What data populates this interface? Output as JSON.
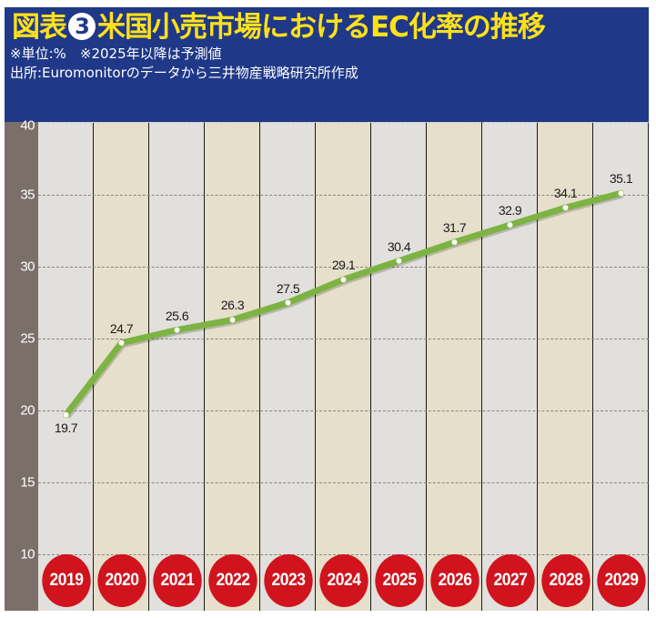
{
  "header": {
    "title_prefix": "図表",
    "figure_number": "3",
    "title_main": "米国小売市場におけるEC化率の推移",
    "unit_note": "※単位:%　※2025年以降は予測値",
    "source_note": "出所:Euromonitorのデータから三井物産戦略研究所作成"
  },
  "colors": {
    "header_bg": "#1f3888",
    "title": "#ffe11a",
    "line": "#7cb342",
    "year_badge": "#d0131d",
    "axis_bg": "#7a6f69",
    "column_a": "#e2e0dd",
    "column_b": "#e6dfcb"
  },
  "chart_data": {
    "type": "line",
    "title": "米国小売市場におけるEC化率の推移",
    "subtitle": "※単位:%　※2025年以降は予測値",
    "source": "出所:Euromonitorのデータから三井物産戦略研究所作成",
    "xlabel": "",
    "ylabel": "%",
    "categories": [
      "2019",
      "2020",
      "2021",
      "2022",
      "2023",
      "2024",
      "2025",
      "2026",
      "2027",
      "2028",
      "2029"
    ],
    "values": [
      19.7,
      24.7,
      25.6,
      26.3,
      27.5,
      29.1,
      30.4,
      31.7,
      32.9,
      34.1,
      35.1
    ],
    "labels": [
      "19.7",
      "24.7",
      "25.6",
      "26.3",
      "27.5",
      "29.1",
      "30.4",
      "31.7",
      "32.9",
      "34.1",
      "35.1"
    ],
    "yticks": [
      "40",
      "35",
      "30",
      "25",
      "20",
      "15",
      "10"
    ],
    "ylim": [
      10,
      40
    ],
    "forecast_from": "2025",
    "grid": true,
    "legend": "none"
  }
}
